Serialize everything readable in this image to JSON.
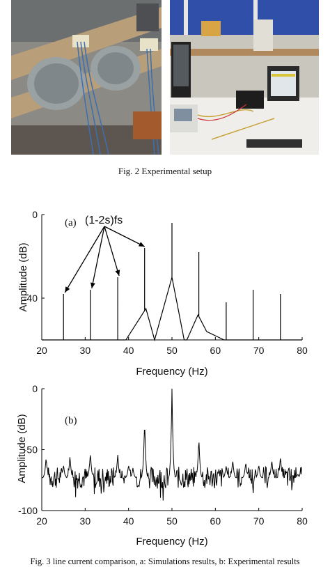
{
  "figure2": {
    "caption": "Fig. 2 Experimental setup",
    "photos": [
      {
        "name": "motor-bench-photo",
        "icon": "motors-test-bench-icon"
      },
      {
        "name": "instrumentation-photo",
        "icon": "laptop-oscilloscope-icon"
      }
    ]
  },
  "figure3": {
    "caption": "Fig. 3 line current comparison, a: Simulations results, b: Experimental results"
  },
  "chart_data": [
    {
      "type": "line",
      "panel_label": "(a)",
      "annotation": "(1-2s)fs",
      "xlabel": "Frequency (Hz)",
      "ylabel": "Amplitude (dB)",
      "xlim": [
        20,
        80
      ],
      "ylim": [
        -60,
        0
      ],
      "xticks": [
        20,
        30,
        40,
        50,
        60,
        70,
        80
      ],
      "yticks": [
        0,
        -40
      ],
      "series": [
        {
          "baseline": [
            [
              20,
              -66
            ],
            [
              30,
              -62
            ],
            [
              37.5,
              -66
            ],
            [
              40,
              -58
            ],
            [
              44,
              -45
            ],
            [
              46,
              -60
            ],
            [
              50,
              -30
            ],
            [
              53,
              -62
            ],
            [
              56,
              -48
            ],
            [
              58,
              -56
            ],
            [
              62,
              -60
            ],
            [
              70,
              -62
            ],
            [
              80,
              -65
            ]
          ],
          "peaks": [
            [
              25,
              -38
            ],
            [
              31.2,
              -36
            ],
            [
              37.5,
              -30
            ],
            [
              43.7,
              -16
            ],
            [
              50,
              -4
            ],
            [
              56.2,
              -18
            ],
            [
              62.5,
              -42
            ],
            [
              68.7,
              -36
            ],
            [
              75,
              -38
            ]
          ]
        }
      ],
      "grid": false
    },
    {
      "type": "line",
      "panel_label": "(b)",
      "xlabel": "Frequency (Hz)",
      "ylabel": "Amplitude (dB)",
      "xlim": [
        20,
        80
      ],
      "ylim": [
        -100,
        0
      ],
      "xticks": [
        20,
        30,
        40,
        50,
        60,
        70,
        80
      ],
      "yticks": [
        0,
        -50,
        -100
      ],
      "series": [
        {
          "noise_floor": -73,
          "peaks": [
            [
              21,
              -56
            ],
            [
              25,
              -62
            ],
            [
              26.5,
              -55
            ],
            [
              31.2,
              -52
            ],
            [
              37.5,
              -53
            ],
            [
              40,
              -62
            ],
            [
              41,
              -65
            ],
            [
              43.7,
              -25
            ],
            [
              50,
              0
            ],
            [
              56.2,
              -40
            ],
            [
              62.5,
              -63
            ],
            [
              64,
              -58
            ],
            [
              67,
              -60
            ],
            [
              70,
              -62
            ],
            [
              73,
              -58
            ],
            [
              75,
              -55
            ],
            [
              79,
              -70
            ]
          ]
        }
      ],
      "grid": false
    }
  ]
}
